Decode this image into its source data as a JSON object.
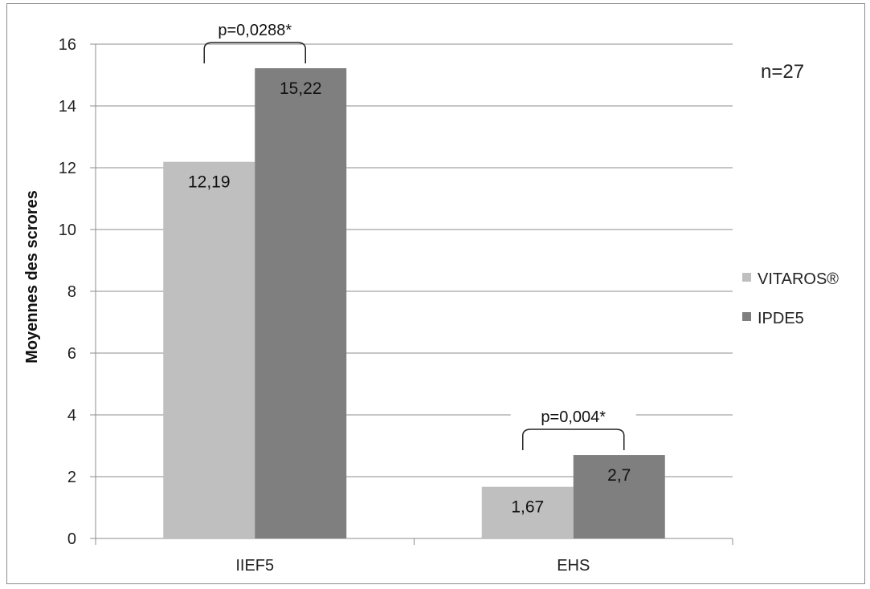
{
  "chart_data": {
    "type": "bar",
    "categories": [
      "IIEF5",
      "EHS"
    ],
    "series": [
      {
        "name": "VITAROS®",
        "values": [
          12.19,
          1.67
        ],
        "labels": [
          "12,19",
          "1,67"
        ],
        "color": "#bfbfbf"
      },
      {
        "name": "IPDE5",
        "values": [
          15.22,
          2.7
        ],
        "labels": [
          "15,22",
          "2,7"
        ],
        "color": "#7f7f7f"
      }
    ],
    "ylabel": "Moyennes des scrores",
    "xlabel": "",
    "ylim": [
      0,
      16
    ],
    "yticks": [
      0,
      2,
      4,
      6,
      8,
      10,
      12,
      14,
      16
    ],
    "grid": true,
    "legend_position": "right",
    "annotations": [
      {
        "text": "p=0,0288*",
        "category": "IIEF5"
      },
      {
        "text": "p=0,004*",
        "category": "EHS"
      }
    ],
    "note": "n=27"
  }
}
